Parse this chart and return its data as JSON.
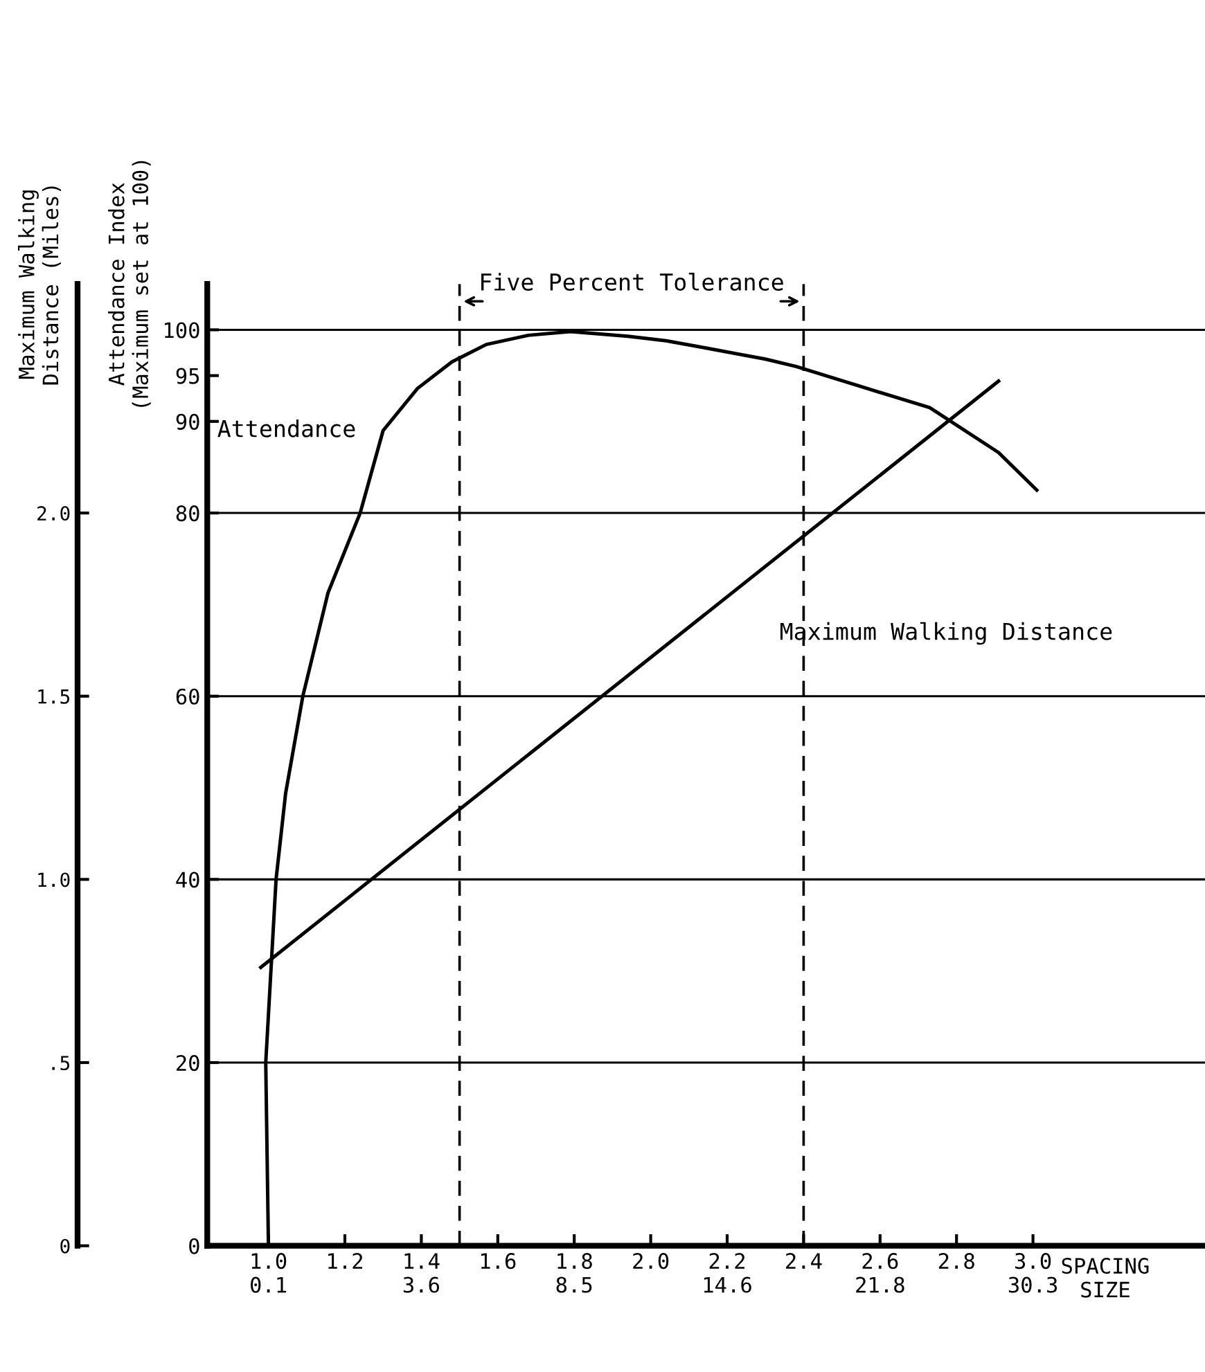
{
  "chart_data": {
    "type": "line",
    "ylabel": "Attendance Index\n(Maximum set at 100)",
    "y2label": "Maximum Walking\nDistance (Miles)",
    "xlabel": "SPACING\nSIZE",
    "x": [
      1.0,
      0.993,
      1.02,
      1.045,
      1.09,
      1.156,
      1.24,
      1.3,
      1.39,
      1.48,
      1.57,
      1.68,
      1.79,
      1.94,
      2.04,
      2.12,
      2.3,
      2.38,
      2.55,
      2.73,
      2.91,
      3.01
    ],
    "series": [
      {
        "name": "Attendance",
        "color": "#000000",
        "axis": "y",
        "values": [
          0,
          20,
          40,
          49.4,
          60,
          71.3,
          80,
          89,
          93.6,
          96.5,
          98.4,
          99.4,
          99.8,
          99.3,
          98.8,
          98.2,
          96.8,
          96.0,
          93.8,
          91.5,
          86.6,
          82.5
        ]
      },
      {
        "name": "Maximum Walking Distance",
        "color": "#000000",
        "axis": "y2",
        "x": [
          0.98,
          2.91
        ],
        "values": [
          0.76,
          2.36
        ]
      }
    ],
    "line_style": "solid",
    "xlim": [
      0.84,
      3.45
    ],
    "xticks": [
      {
        "value": 1.0,
        "label": "1.0\n0.1"
      },
      {
        "value": 1.2,
        "label": "1.2"
      },
      {
        "value": 1.4,
        "label": "1.4\n3.6"
      },
      {
        "value": 1.6,
        "label": "1.6"
      },
      {
        "value": 1.8,
        "label": "1.8\n8.5"
      },
      {
        "value": 2.0,
        "label": "2.0"
      },
      {
        "value": 2.2,
        "label": "2.2\n14.6"
      },
      {
        "value": 2.4,
        "label": "2.4"
      },
      {
        "value": 2.6,
        "label": "2.6\n21.8"
      },
      {
        "value": 2.8,
        "label": "2.8"
      },
      {
        "value": 3.0,
        "label": "3.0\n30.3"
      }
    ],
    "ylim": [
      0,
      105
    ],
    "yticks": [
      0,
      20,
      40,
      60,
      80,
      90,
      95,
      100
    ],
    "y2lim": [
      0,
      2.625
    ],
    "y2ticks": [
      0,
      {
        "value": 0.5,
        "label": ".5"
      },
      {
        "value": 1.0,
        "label": "1.0"
      },
      1.5,
      {
        "value": 2.0,
        "label": "2.0"
      }
    ],
    "ref_lines": [
      {
        "axis": "y",
        "value": 20,
        "line_style": "solid",
        "color": "#000000"
      },
      {
        "axis": "y",
        "value": 40,
        "line_style": "solid",
        "color": "#000000"
      },
      {
        "axis": "y",
        "value": 60,
        "line_style": "solid",
        "color": "#000000"
      },
      {
        "axis": "y",
        "value": 80,
        "line_style": "solid",
        "color": "#000000"
      },
      {
        "axis": "y",
        "value": 100,
        "line_style": "solid",
        "color": "#000000"
      },
      {
        "axis": "x",
        "value": 1.5,
        "line_style": "dashed",
        "color": "#000000"
      },
      {
        "axis": "x",
        "value": 2.4,
        "line_style": "dashed",
        "color": "#000000"
      }
    ],
    "annotations": [
      "Five Percent Tolerance"
    ],
    "grid": false,
    "legend": false
  }
}
